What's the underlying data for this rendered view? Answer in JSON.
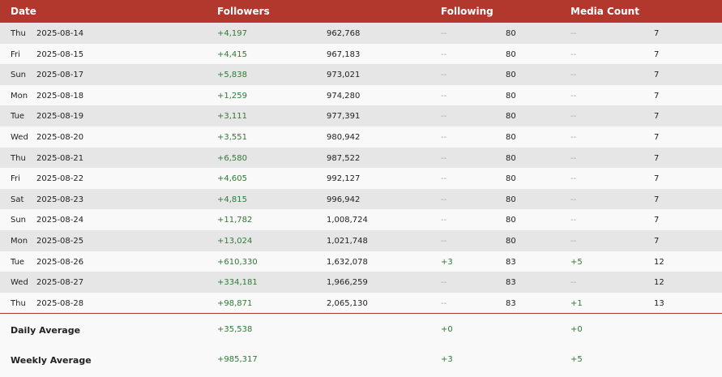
{
  "header": {
    "date": "Date",
    "followers": "Followers",
    "following": "Following",
    "media_count": "Media Count"
  },
  "rows": [
    {
      "day": "Thu",
      "date": "2025-08-14",
      "followers_change": "+4,197",
      "followers_total": "962,768",
      "following_change": "--",
      "following_total": "80",
      "media_change": "--",
      "media_total": "7"
    },
    {
      "day": "Fri",
      "date": "2025-08-15",
      "followers_change": "+4,415",
      "followers_total": "967,183",
      "following_change": "--",
      "following_total": "80",
      "media_change": "--",
      "media_total": "7"
    },
    {
      "day": "Sun",
      "date": "2025-08-17",
      "followers_change": "+5,838",
      "followers_total": "973,021",
      "following_change": "--",
      "following_total": "80",
      "media_change": "--",
      "media_total": "7"
    },
    {
      "day": "Mon",
      "date": "2025-08-18",
      "followers_change": "+1,259",
      "followers_total": "974,280",
      "following_change": "--",
      "following_total": "80",
      "media_change": "--",
      "media_total": "7"
    },
    {
      "day": "Tue",
      "date": "2025-08-19",
      "followers_change": "+3,111",
      "followers_total": "977,391",
      "following_change": "--",
      "following_total": "80",
      "media_change": "--",
      "media_total": "7"
    },
    {
      "day": "Wed",
      "date": "2025-08-20",
      "followers_change": "+3,551",
      "followers_total": "980,942",
      "following_change": "--",
      "following_total": "80",
      "media_change": "--",
      "media_total": "7"
    },
    {
      "day": "Thu",
      "date": "2025-08-21",
      "followers_change": "+6,580",
      "followers_total": "987,522",
      "following_change": "--",
      "following_total": "80",
      "media_change": "--",
      "media_total": "7"
    },
    {
      "day": "Fri",
      "date": "2025-08-22",
      "followers_change": "+4,605",
      "followers_total": "992,127",
      "following_change": "--",
      "following_total": "80",
      "media_change": "--",
      "media_total": "7"
    },
    {
      "day": "Sat",
      "date": "2025-08-23",
      "followers_change": "+4,815",
      "followers_total": "996,942",
      "following_change": "--",
      "following_total": "80",
      "media_change": "--",
      "media_total": "7"
    },
    {
      "day": "Sun",
      "date": "2025-08-24",
      "followers_change": "+11,782",
      "followers_total": "1,008,724",
      "following_change": "--",
      "following_total": "80",
      "media_change": "--",
      "media_total": "7"
    },
    {
      "day": "Mon",
      "date": "2025-08-25",
      "followers_change": "+13,024",
      "followers_total": "1,021,748",
      "following_change": "--",
      "following_total": "80",
      "media_change": "--",
      "media_total": "7"
    },
    {
      "day": "Tue",
      "date": "2025-08-26",
      "followers_change": "+610,330",
      "followers_total": "1,632,078",
      "following_change": "+3",
      "following_total": "83",
      "media_change": "+5",
      "media_total": "12"
    },
    {
      "day": "Wed",
      "date": "2025-08-27",
      "followers_change": "+334,181",
      "followers_total": "1,966,259",
      "following_change": "--",
      "following_total": "83",
      "media_change": "--",
      "media_total": "12"
    },
    {
      "day": "Thu",
      "date": "2025-08-28",
      "followers_change": "+98,871",
      "followers_total": "2,065,130",
      "following_change": "--",
      "following_total": "83",
      "media_change": "+1",
      "media_total": "13"
    }
  ],
  "summary": {
    "daily": {
      "label": "Daily Average",
      "followers": "+35,538",
      "following": "+0",
      "media": "+0"
    },
    "weekly": {
      "label": "Weekly Average",
      "followers": "+985,317",
      "following": "+3",
      "media": "+5"
    }
  },
  "colors": {
    "header_bg": "#b2372d",
    "positive": "#2f7a36",
    "muted": "#a7a7a7"
  }
}
